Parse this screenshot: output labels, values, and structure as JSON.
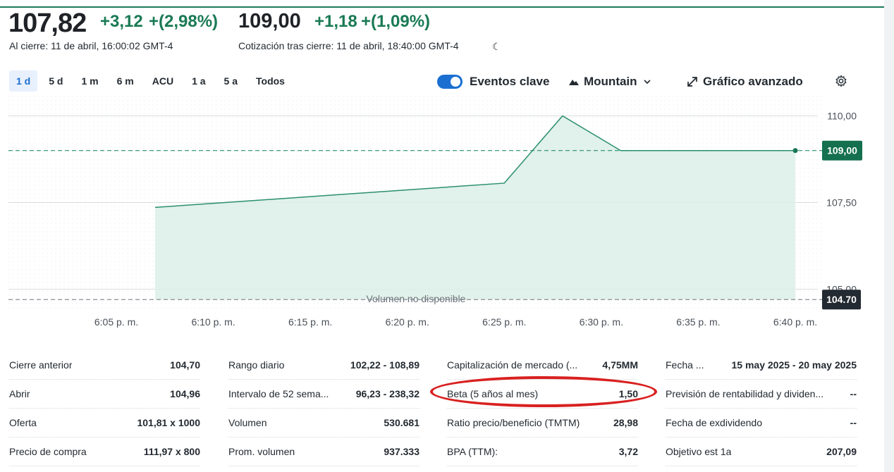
{
  "quote": {
    "price": "107,82",
    "change": "+3,12",
    "change_pct": "+(2,98%)",
    "close_label": "Al cierre: 11 de abril, 16:00:02 GMT-4",
    "after_price": "109,00",
    "after_change": "+1,18",
    "after_change_pct": "+(1,09%)",
    "after_label": "Cotización tras cierre: 11 de abril, 18:40:00 GMT-4",
    "moon_icon": "☾"
  },
  "ranges": [
    "1 d",
    "5 d",
    "1 m",
    "6 m",
    "ACU",
    "1 a",
    "5 a",
    "Todos"
  ],
  "active_range": "1 d",
  "toolbar": {
    "events_label": "Eventos clave",
    "events_on": true,
    "chart_type_label": "Mountain",
    "advanced_label": "Gráfico avanzado",
    "settings_icon": "gear-icon"
  },
  "chart_data": {
    "type": "area",
    "x_labels": [
      "6:05 p. m.",
      "6:10 p. m.",
      "6:15 p. m.",
      "6:20 p. m.",
      "6:25 p. m.",
      "6:30 p. m.",
      "6:35 p. m.",
      "6:40 p. m."
    ],
    "y_ticks": [
      "110,00",
      "107,50",
      "105,00"
    ],
    "ylim": [
      104.4,
      110.6
    ],
    "series": [
      {
        "x": [
          "6:07 p. m.",
          "6:25 p. m.",
          "6:28 p. m.",
          "6:31 p. m.",
          "6:40 p. m."
        ],
        "values": [
          107.36,
          108.06,
          110.0,
          109.0,
          109.0
        ]
      }
    ],
    "current_price_label": "109,00",
    "current_price": 109.0,
    "prev_close_label": "104.70",
    "prev_close": 104.7,
    "volume_note": "Volumen no disponible",
    "colors": {
      "line": "#2a8f6f",
      "fill": "#dcefe8",
      "current_badge": "#14704f",
      "prev_badge": "#232a31"
    }
  },
  "stats": [
    [
      {
        "label": "Cierre anterior",
        "value": "104,70"
      },
      {
        "label": "Abrir",
        "value": "104,96"
      },
      {
        "label": "Oferta",
        "value": "101,81 x 1000"
      },
      {
        "label": "Precio de compra",
        "value": "111,97 x 800"
      }
    ],
    [
      {
        "label": "Rango diario",
        "value": "102,22 - 108,89"
      },
      {
        "label": "Intervalo de 52 sema...",
        "value": "96,23 - 238,32"
      },
      {
        "label": "Volumen",
        "value": "530.681"
      },
      {
        "label": "Prom. volumen",
        "value": "937.333"
      }
    ],
    [
      {
        "label": "Capitalización de mercado (...",
        "value": "4,75MM"
      },
      {
        "label": "Beta (5 años al mes)",
        "value": "1,50"
      },
      {
        "label": "Ratio precio/beneficio (TMTM)",
        "value": "28,98"
      },
      {
        "label": "BPA (TTM):",
        "value": "3,72"
      }
    ],
    [
      {
        "label": "Fecha ...",
        "value": "15 may 2025 - 20 may 2025"
      },
      {
        "label": "Previsión de rentabilidad y dividen...",
        "value": "--"
      },
      {
        "label": "Fecha de exdividendo",
        "value": "--"
      },
      {
        "label": "Objetivo est 1a",
        "value": "207,09"
      }
    ]
  ]
}
